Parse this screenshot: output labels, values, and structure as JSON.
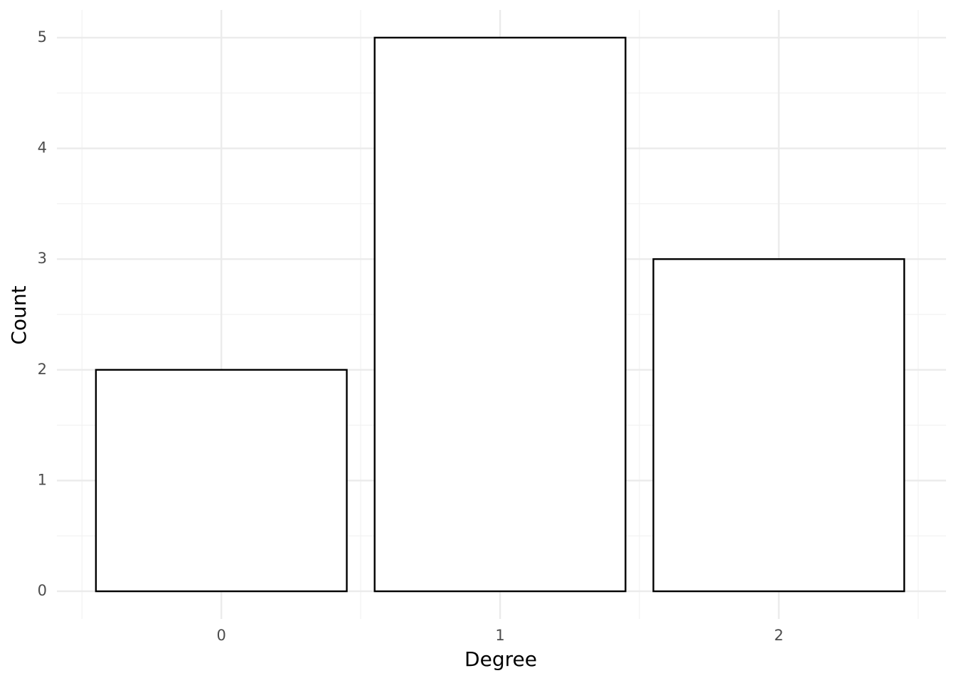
{
  "chart_data": {
    "type": "bar",
    "x_label": "Degree",
    "y_label": "Count",
    "x": [
      0,
      1,
      2
    ],
    "values": [
      2,
      5,
      3
    ],
    "bar_width": 0.9,
    "color": "#ffffff",
    "edge_color": "#000000",
    "xlim": [
      -0.59,
      2.6
    ],
    "xticks": [
      0,
      1,
      2
    ],
    "ylim": [
      -0.25,
      5.25
    ],
    "yticks": [
      0,
      1,
      2,
      3,
      4,
      5
    ],
    "grid": true
  }
}
